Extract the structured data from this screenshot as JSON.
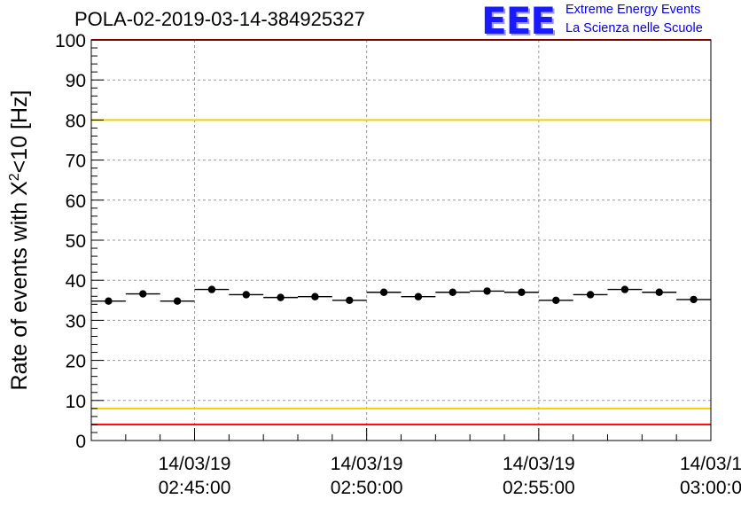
{
  "header": {
    "title": "POLA-02-2019-03-14-384925327",
    "logo_text": "EEE",
    "logo_line1": "Extreme Energy Events",
    "logo_line2": "La Scienza nelle Scuole"
  },
  "colors": {
    "red_limit": "#ff0000",
    "yellow_limit": "#f5d000",
    "logo_blue": "#1a1aff",
    "logo_text_blue": "#0000ee"
  },
  "chart_data": {
    "type": "scatter",
    "title": "POLA-02-2019-03-14-384925327",
    "ylabel": "Rate of events with X²<10 [Hz]",
    "ylabel_main": "Rate of events with X",
    "ylabel_sup": "2",
    "ylabel_tail": "<10 [Hz]",
    "xlabel": "",
    "ylim": [
      0,
      100
    ],
    "xlim": [
      "02:42:00",
      "03:00:00"
    ],
    "yticks": [
      "0",
      "10",
      "20",
      "30",
      "40",
      "50",
      "60",
      "70",
      "80",
      "90",
      "100"
    ],
    "xticks": [
      {
        "date": "14/03/19",
        "time": "02:45:00"
      },
      {
        "date": "14/03/19",
        "time": "02:50:00"
      },
      {
        "date": "14/03/19",
        "time": "02:55:00"
      },
      {
        "date": "14/03/1",
        "time": "03:00:0"
      }
    ],
    "grid": true,
    "bin_width_minutes": 1,
    "limits": [
      {
        "name": "upper red",
        "value": 100
      },
      {
        "name": "upper yellow",
        "value": 80
      },
      {
        "name": "lower yellow",
        "value": 8
      },
      {
        "name": "lower red",
        "value": 4
      }
    ],
    "series": [
      {
        "x": [
          "02:42:30",
          "02:43:30",
          "02:44:30",
          "02:45:30",
          "02:46:30",
          "02:47:30",
          "02:48:30",
          "02:49:30",
          "02:50:30",
          "02:51:30",
          "02:52:30",
          "02:53:30",
          "02:54:30",
          "02:55:30",
          "02:56:30",
          "02:57:30",
          "02:58:30",
          "02:59:30"
        ],
        "values": [
          34.8,
          36.6,
          34.8,
          37.7,
          36.4,
          35.7,
          35.9,
          35.0,
          37.0,
          35.9,
          37.0,
          37.3,
          37.0,
          35.0,
          36.4,
          37.7,
          37.0,
          35.2
        ]
      }
    ]
  }
}
